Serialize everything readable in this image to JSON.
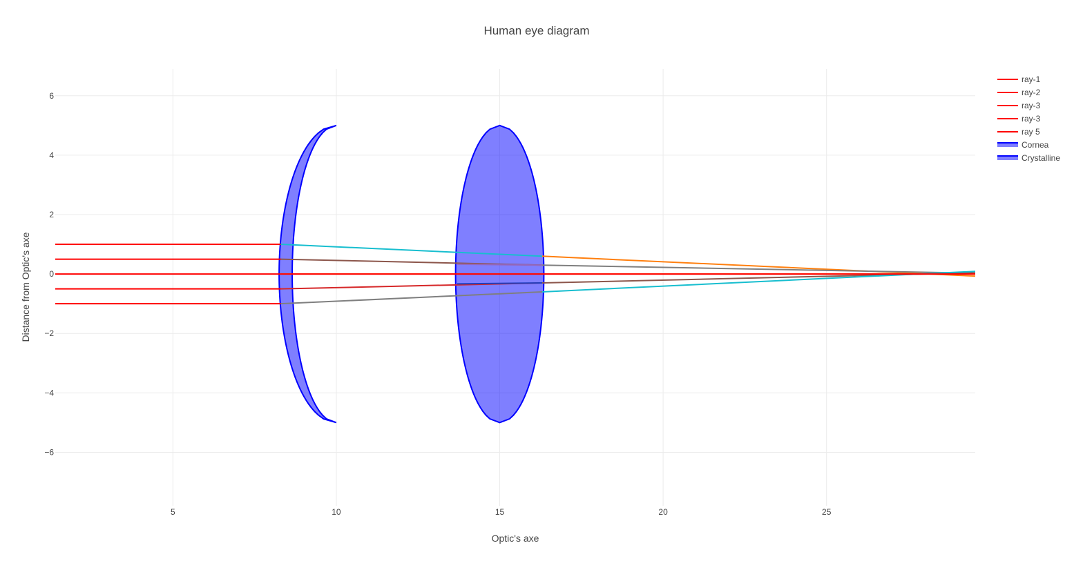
{
  "chart_data": {
    "type": "line",
    "title": "Human eye diagram",
    "xlabel": "Optic's axe",
    "ylabel": "Distance from Optic's axe",
    "xlim": [
      1.4,
      29.55
    ],
    "ylim": [
      -7.8,
      6.9
    ],
    "x_ticks": [
      5,
      10,
      15,
      20,
      25
    ],
    "y_ticks": [
      6,
      4,
      2,
      0,
      -2,
      -4,
      -6
    ],
    "y_tick_labels": [
      "6",
      "4",
      "2",
      "0",
      "−2",
      "−4",
      "−6"
    ],
    "grid": true,
    "legend_position": "top-right",
    "legend": [
      {
        "name": "ray-1",
        "color": "#ff0000",
        "kind": "line"
      },
      {
        "name": "ray-2",
        "color": "#ff0000",
        "kind": "line"
      },
      {
        "name": "ray-3",
        "color": "#ff0000",
        "kind": "line"
      },
      {
        "name": "ray-3",
        "color": "#ff0000",
        "kind": "line"
      },
      {
        "name": "ray 5",
        "color": "#ff0000",
        "kind": "line"
      },
      {
        "name": "Cornea",
        "color": "#0000ff",
        "kind": "fill"
      },
      {
        "name": "Crystalline",
        "color": "#0000ff",
        "kind": "fill"
      }
    ],
    "incoming_rays": [
      {
        "name": "ray-1",
        "color": "#ff0000",
        "x": [
          1.4,
          8.3
        ],
        "y": [
          1.0,
          1.0
        ]
      },
      {
        "name": "ray-2",
        "color": "#ff0000",
        "x": [
          1.4,
          8.3
        ],
        "y": [
          0.5,
          0.5
        ]
      },
      {
        "name": "ray-3",
        "color": "#ff0000",
        "x": [
          1.4,
          29.55
        ],
        "y": [
          0.0,
          0.0
        ]
      },
      {
        "name": "ray-3",
        "color": "#ff0000",
        "x": [
          1.4,
          8.3
        ],
        "y": [
          -0.5,
          -0.5
        ]
      },
      {
        "name": "ray 5",
        "color": "#ff0000",
        "x": [
          1.4,
          8.3
        ],
        "y": [
          -1.0,
          -1.0
        ]
      }
    ],
    "refracted_rays": [
      {
        "color": "#17becf",
        "x": [
          8.3,
          16.3
        ],
        "y": [
          1.0,
          0.6
        ]
      },
      {
        "color": "#ff7f0e",
        "x": [
          16.3,
          29.55
        ],
        "y": [
          0.6,
          -0.07
        ]
      },
      {
        "color": "#8c564b",
        "x": [
          8.3,
          16.3
        ],
        "y": [
          0.5,
          0.3
        ]
      },
      {
        "color": "#9467bd",
        "x": [
          13.7,
          16.3
        ],
        "y": [
          0.33,
          0.3
        ]
      },
      {
        "color": "#7f7f7f",
        "x": [
          16.3,
          29.55
        ],
        "y": [
          0.3,
          0.03
        ]
      },
      {
        "color": "#ff7f0e",
        "x": [
          8.3,
          29.55
        ],
        "y": [
          0.0,
          0.0
        ]
      },
      {
        "color": "#d62728",
        "x": [
          8.3,
          16.3
        ],
        "y": [
          -0.5,
          -0.3
        ]
      },
      {
        "color": "#1f3fbf",
        "x": [
          13.7,
          16.3
        ],
        "y": [
          -0.33,
          -0.3
        ]
      },
      {
        "color": "#8c564b",
        "x": [
          16.3,
          29.55
        ],
        "y": [
          -0.3,
          0.04
        ]
      },
      {
        "color": "#7f7f7f",
        "x": [
          8.3,
          16.3
        ],
        "y": [
          -1.0,
          -0.6
        ]
      },
      {
        "color": "#17becf",
        "x": [
          16.3,
          29.55
        ],
        "y": [
          -0.6,
          0.09
        ]
      }
    ],
    "cornea": {
      "name": "Cornea",
      "color": "#0000ff",
      "fill_opacity": 0.5,
      "tip_x": 10.0,
      "half_height": 5.0,
      "outer_x_at_axis": 8.25,
      "inner_x_at_axis": 8.65
    },
    "crystalline": {
      "name": "Crystalline",
      "color": "#0000ff",
      "fill_opacity": 0.5,
      "center_x": 15.0,
      "half_height": 5.0,
      "left_x_at_axis": 13.65,
      "right_x_at_axis": 16.35
    }
  }
}
